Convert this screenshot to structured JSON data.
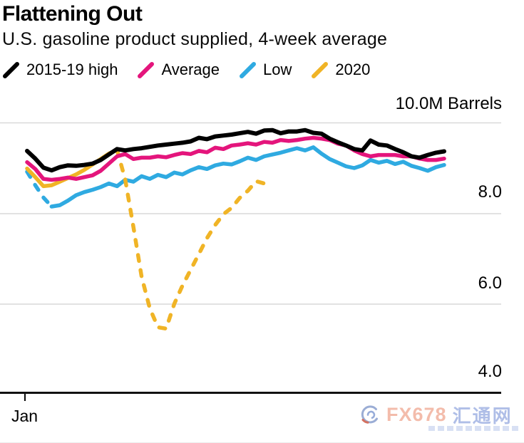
{
  "header": {
    "title": "Flattening Out",
    "subtitle": "U.S. gasoline product supplied, 4-week average"
  },
  "legend": {
    "items": [
      {
        "label": "2015-19 high"
      },
      {
        "label": "Average"
      },
      {
        "label": "Low"
      },
      {
        "label": "2020"
      }
    ]
  },
  "axis": {
    "y_top_label": "10.0M Barrels",
    "y_label_8": "8.0",
    "y_label_6": "6.0",
    "y_label_4": "4.0",
    "x_label": "Jan"
  },
  "watermark": {
    "brand": "FX678",
    "brand_cn": "汇通网"
  },
  "chart_data": {
    "type": "line",
    "title": "Flattening Out",
    "subtitle": "U.S. gasoline product supplied, 4-week average",
    "unit": "M Barrels",
    "x_unit": "week of year",
    "x_start_label": "Jan",
    "ylim": [
      4.0,
      10.4
    ],
    "yticks": [
      4.0,
      6.0,
      8.0,
      10.0
    ],
    "grid": "horizontal",
    "legend_position": "top",
    "colors": {
      "high": "#000000",
      "average": "#e4157c",
      "low": "#2faae1",
      "y2020": "#f0b426",
      "gridline": "#d9d9d9",
      "axis": "#111111"
    },
    "series": [
      {
        "name": "2015-19 high",
        "color": "#000000",
        "stroke_width": 6,
        "line_style": "solid",
        "z": 4,
        "values": [
          9.38,
          9.21,
          9.01,
          8.95,
          9.02,
          9.06,
          9.05,
          9.07,
          9.1,
          9.18,
          9.3,
          9.42,
          9.39,
          9.42,
          9.44,
          9.47,
          9.5,
          9.52,
          9.54,
          9.56,
          9.59,
          9.67,
          9.64,
          9.7,
          9.72,
          9.74,
          9.77,
          9.8,
          9.76,
          9.83,
          9.84,
          9.77,
          9.81,
          9.81,
          9.84,
          9.78,
          9.76,
          9.65,
          9.57,
          9.5,
          9.42,
          9.39,
          9.61,
          9.52,
          9.5,
          9.42,
          9.35,
          9.26,
          9.23,
          9.29,
          9.34,
          9.37
        ]
      },
      {
        "name": "Average",
        "color": "#e4157c",
        "stroke_width": 5.5,
        "line_style": "solid",
        "z": 3,
        "values": [
          9.13,
          8.98,
          8.76,
          8.74,
          8.76,
          8.79,
          8.76,
          8.8,
          8.84,
          8.94,
          9.1,
          9.26,
          9.31,
          9.2,
          9.23,
          9.23,
          9.26,
          9.24,
          9.29,
          9.33,
          9.31,
          9.38,
          9.35,
          9.45,
          9.42,
          9.5,
          9.52,
          9.55,
          9.52,
          9.58,
          9.56,
          9.62,
          9.6,
          9.62,
          9.65,
          9.67,
          9.65,
          9.62,
          9.54,
          9.5,
          9.39,
          9.31,
          9.26,
          9.29,
          9.29,
          9.29,
          9.26,
          9.26,
          9.21,
          9.18,
          9.18,
          9.21
        ]
      },
      {
        "name": "Low",
        "color": "#2faae1",
        "stroke_width": 5.5,
        "line_style": "dashed-at-start",
        "dashed_until_index": 3,
        "z": 1,
        "values": [
          8.92,
          8.62,
          8.35,
          8.15,
          8.18,
          8.28,
          8.4,
          8.47,
          8.52,
          8.58,
          8.66,
          8.6,
          8.74,
          8.7,
          8.82,
          8.76,
          8.85,
          8.8,
          8.9,
          8.86,
          8.95,
          9.02,
          8.98,
          9.06,
          9.1,
          9.08,
          9.15,
          9.23,
          9.18,
          9.26,
          9.3,
          9.34,
          9.39,
          9.44,
          9.39,
          9.46,
          9.32,
          9.2,
          9.12,
          9.04,
          9.0,
          9.06,
          9.18,
          9.12,
          9.16,
          9.09,
          9.14,
          9.05,
          9.0,
          8.94,
          9.02,
          9.07
        ]
      },
      {
        "name": "2020",
        "color": "#f0b426",
        "stroke_width": 5.5,
        "line_style": "dashed-after-peak",
        "solid_until_index": 11,
        "z": 2,
        "values": [
          8.99,
          8.8,
          8.6,
          8.62,
          8.7,
          8.78,
          8.86,
          8.96,
          9.08,
          9.2,
          9.32,
          9.4,
          8.75,
          7.7,
          6.6,
          5.9,
          5.48,
          5.45,
          6.0,
          6.4,
          6.75,
          7.1,
          7.45,
          7.74,
          7.98,
          8.12,
          8.34,
          8.5,
          8.71,
          8.66
        ]
      }
    ]
  }
}
